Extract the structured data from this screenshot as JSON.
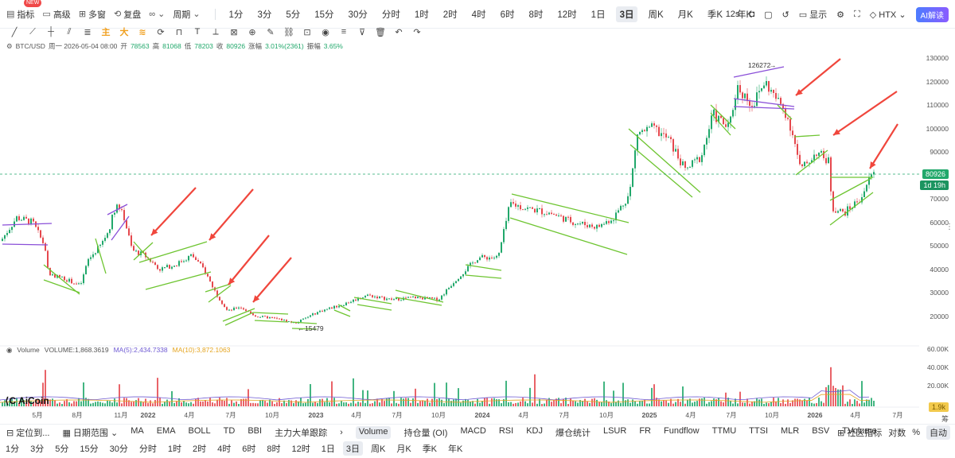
{
  "toolbar": {
    "items": [
      {
        "label": "指标",
        "icon": "indicator-icon",
        "badge": "NEW"
      },
      {
        "label": "高级",
        "icon": "advanced-icon"
      },
      {
        "label": "多窗",
        "icon": "multi-window-icon"
      },
      {
        "label": "复盘",
        "icon": "replay-icon"
      },
      {
        "label": "",
        "icon": "compare-icon"
      },
      {
        "label": "周期",
        "icon": "period-icon"
      }
    ],
    "periods": [
      "1分",
      "3分",
      "5分",
      "15分",
      "30分",
      "分时",
      "1时",
      "2时",
      "4时",
      "6时",
      "8时",
      "12时",
      "1日",
      "3日",
      "周K",
      "月K",
      "季K",
      "年K"
    ],
    "active_period": "3日",
    "right": {
      "interval": "12s",
      "display": "显示",
      "exchange": "HTX",
      "ai": "AI解读"
    }
  },
  "info": {
    "symbol": "BTC/USD",
    "date": "周一 2026-05-04 08:00",
    "open_label": "开",
    "open": "78563",
    "high_label": "高",
    "high": "81068",
    "low_label": "低",
    "low": "78203",
    "close_label": "收",
    "close": "80926",
    "change_label": "涨幅",
    "change": "3.01%(2361)",
    "amp_label": "振幅",
    "amp": "3.65%"
  },
  "price_axis": {
    "ticks": [
      "130000",
      "120000",
      "110000",
      "100000",
      "90000",
      "80000",
      "70000",
      "60000",
      "50000",
      "40000",
      "30000",
      "20000"
    ],
    "last_price": "80926",
    "countdown": "1d 19h",
    "last_color": "#21a86b"
  },
  "annotations": {
    "high": "126272",
    "low": "15479"
  },
  "time_axis": [
    "5月",
    "8月",
    "11月",
    "2022",
    "4月",
    "7月",
    "10月",
    "2023",
    "4月",
    "7月",
    "10月",
    "2024",
    "4月",
    "7月",
    "10月",
    "2025",
    "4月",
    "7月",
    "10月",
    "2026",
    "4月",
    "7月"
  ],
  "volume": {
    "label": "Volume",
    "value_label": "VOLUME:1,868.3619",
    "ma5": "MA(5):2,434.7338",
    "ma10": "MA(10):3,872.1063",
    "ticks": [
      "60.00K",
      "40.00K",
      "20.00K"
    ],
    "last": "1.9k"
  },
  "logo": "AiCoin",
  "indicators": {
    "locate": "定位到...",
    "range": "日期范围",
    "main": [
      "MA",
      "EMA",
      "BOLL",
      "TD",
      "BBI",
      "主力大单跟踪"
    ],
    "sub": [
      "Volume",
      "持仓量 (OI)",
      "MACD",
      "RSI",
      "KDJ",
      "爆仓统计",
      "LSUR",
      "FR",
      "Fundflow",
      "TTMU",
      "TTSI",
      "MLR",
      "BSV",
      "TVolume"
    ],
    "active": "Volume",
    "community": "社区指标",
    "log": "对数",
    "pct": "%",
    "auto": "自动"
  },
  "bottom_periods": [
    "1分",
    "3分",
    "5分",
    "15分",
    "30分",
    "分时",
    "1时",
    "2时",
    "4时",
    "6时",
    "8时",
    "12时",
    "1日",
    "3日",
    "周K",
    "月K",
    "季K",
    "年K"
  ],
  "colors": {
    "up": "#21a86b",
    "down": "#e5484d",
    "trend": "#6ec531",
    "arrow": "#f0463c",
    "ma5": "#6f5bd3",
    "ma10": "#e5a521"
  }
}
